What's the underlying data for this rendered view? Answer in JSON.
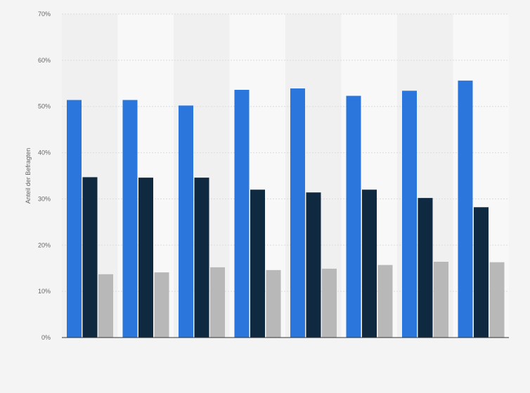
{
  "chart_data": {
    "type": "bar",
    "title": "",
    "xlabel": "",
    "ylabel": "Anteil der Befragten",
    "categories": [
      "",
      "",
      "",
      "",
      "",
      "",
      "",
      ""
    ],
    "ylim": [
      0,
      70
    ],
    "yticks": [
      0,
      10,
      20,
      30,
      40,
      50,
      60,
      70
    ],
    "ytick_suffix": "%",
    "grid": true,
    "legend": "none",
    "series": [
      {
        "color": "#2a76dd",
        "values": [
          51.4,
          51.4,
          50.2,
          53.6,
          53.9,
          52.3,
          53.4,
          55.6
        ]
      },
      {
        "color": "#0f2a40",
        "values": [
          34.7,
          34.6,
          34.6,
          32.0,
          31.4,
          32.0,
          30.2,
          28.2
        ]
      },
      {
        "color": "#b8b8b8",
        "values": [
          13.7,
          14.1,
          15.2,
          14.6,
          14.9,
          15.7,
          16.4,
          16.3
        ]
      }
    ],
    "colors": {
      "band_dark": "#f0f0f0",
      "band_light": "#f8f8f8",
      "grid": "#dcdcdc",
      "axis": "#333333"
    }
  }
}
